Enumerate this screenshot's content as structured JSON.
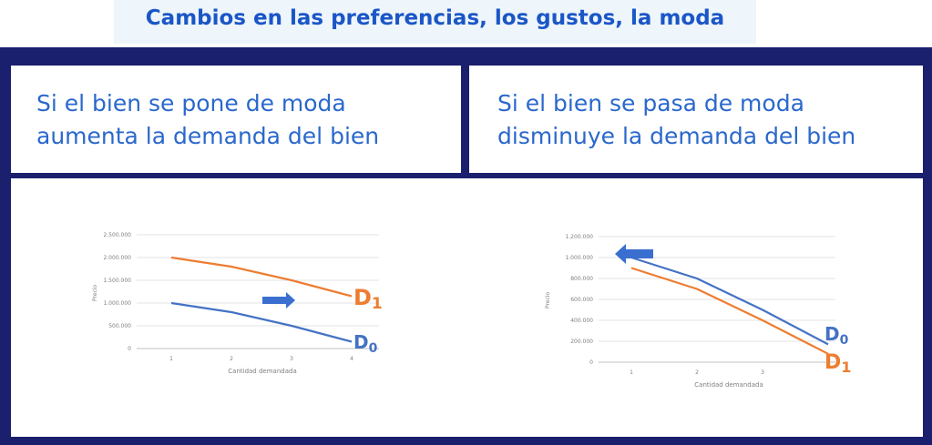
{
  "header": {
    "title": "Cambios en las preferencias, los gustos, la moda"
  },
  "left_panel": {
    "line1": "Si el bien se pone de moda",
    "line2": "aumenta la demanda del bien"
  },
  "right_panel": {
    "line1": "Si el bien se pasa de moda",
    "line2": "disminuye la demanda del bien"
  },
  "colors": {
    "blue": "#4472c4",
    "orange": "#ed7d31",
    "arrow": "#3a6fd0",
    "frame": "#1a1f6e",
    "title": "#1a56c7"
  },
  "chart_data": [
    {
      "type": "line",
      "xlabel": "Cantidad demandada",
      "ylabel": "Precio",
      "x_ticks": [
        "1",
        "2",
        "3",
        "4"
      ],
      "y_ticks": [
        "0",
        "500.000",
        "1.000.000",
        "1.500.000",
        "2.000.000",
        "2.500.000"
      ],
      "ylim": [
        0,
        2500000
      ],
      "grid": true,
      "shift_arrow": "right",
      "series": [
        {
          "name": "D1",
          "name_base": "D",
          "name_sub": "1",
          "color": "#ed7d31",
          "x": [
            1,
            2,
            3,
            4
          ],
          "values": [
            2000000,
            1800000,
            1500000,
            1150000
          ]
        },
        {
          "name": "D0",
          "name_base": "D",
          "name_sub": "0",
          "color": "#4472c4",
          "x": [
            1,
            2,
            3,
            4
          ],
          "values": [
            1000000,
            800000,
            500000,
            150000
          ]
        }
      ]
    },
    {
      "type": "line",
      "xlabel": "Cantidad demandada",
      "ylabel": "Precio",
      "x_ticks": [
        "1",
        "2",
        "3"
      ],
      "y_ticks": [
        "0",
        "200.000",
        "400.000",
        "600.000",
        "800.000",
        "1.000.000",
        "1.200.000"
      ],
      "ylim": [
        0,
        1200000
      ],
      "grid": true,
      "shift_arrow": "left",
      "series": [
        {
          "name": "D0",
          "name_base": "D",
          "name_sub": "0",
          "color": "#4472c4",
          "x": [
            1,
            2,
            3,
            4
          ],
          "values": [
            1000000,
            800000,
            500000,
            170000
          ]
        },
        {
          "name": "D1",
          "name_base": "D",
          "name_sub": "1",
          "color": "#ed7d31",
          "x": [
            1,
            2,
            3,
            4
          ],
          "values": [
            900000,
            700000,
            400000,
            80000
          ]
        }
      ]
    }
  ]
}
